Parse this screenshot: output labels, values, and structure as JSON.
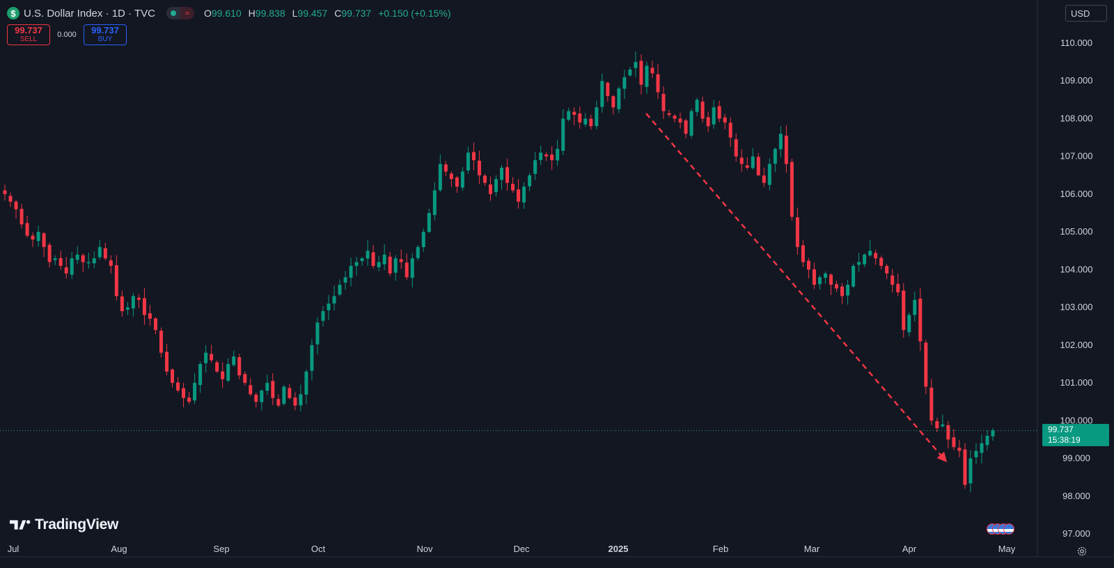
{
  "header": {
    "symbol_logo": "$",
    "title": "U.S. Dollar Index · 1D · TVC",
    "ohlc": [
      {
        "k": "O",
        "v": "99.610"
      },
      {
        "k": "H",
        "v": "99.838"
      },
      {
        "k": "L",
        "v": "99.457"
      },
      {
        "k": "C",
        "v": "99.737"
      },
      {
        "k": "",
        "v": "+0.150 (+0.15%)"
      }
    ]
  },
  "trade": {
    "sell_price": "99.737",
    "sell_label": "SELL",
    "spread": "0.000",
    "buy_price": "99.737",
    "buy_label": "BUY"
  },
  "currency": "USD",
  "last_price": {
    "value": "99.737",
    "countdown": "15:38:19"
  },
  "brand": "TradingView",
  "colors": {
    "up": "#089981",
    "down": "#f23645",
    "bg": "#131722",
    "arrow": "#f23645",
    "text": "#d1d4dc"
  },
  "chart_data": {
    "type": "candlestick",
    "y_ticks": [
      "110.000",
      "109.000",
      "108.000",
      "107.000",
      "106.000",
      "105.000",
      "104.000",
      "103.000",
      "102.000",
      "101.000",
      "100.000",
      "99.000",
      "98.000",
      "97.000"
    ],
    "ylim": [
      96.8,
      110.5
    ],
    "x_ticks": [
      "Jul",
      "Aug",
      "Sep",
      "Oct",
      "Nov",
      "Dec",
      "2025",
      "Feb",
      "Mar",
      "Apr",
      "May"
    ],
    "last_price": 99.737,
    "annotation": {
      "type": "dashed-arrow",
      "from": {
        "date": "2025-01-10",
        "price": 108.2
      },
      "to": {
        "date": "2025-04-14",
        "price": 98.9
      }
    },
    "closes": [
      106.0,
      105.8,
      105.6,
      105.2,
      104.9,
      104.8,
      105.0,
      104.6,
      104.2,
      104.3,
      104.1,
      103.9,
      104.3,
      104.4,
      104.2,
      104.2,
      104.3,
      104.6,
      104.3,
      104.1,
      103.3,
      102.9,
      103.0,
      103.3,
      103.2,
      102.8,
      102.7,
      102.4,
      101.8,
      101.3,
      101.0,
      100.8,
      100.6,
      100.5,
      101.0,
      101.5,
      101.8,
      101.6,
      101.3,
      101.1,
      101.5,
      101.7,
      101.2,
      101.0,
      100.7,
      100.5,
      100.8,
      101.0,
      100.6,
      100.4,
      100.9,
      100.6,
      100.4,
      100.7,
      101.3,
      102.0,
      102.6,
      102.9,
      103.1,
      103.3,
      103.6,
      103.8,
      104.1,
      104.2,
      104.3,
      104.5,
      104.1,
      104.2,
      104.4,
      103.9,
      104.3,
      104.2,
      103.8,
      104.3,
      104.6,
      105.0,
      105.5,
      106.1,
      106.8,
      106.6,
      106.4,
      106.2,
      106.6,
      107.1,
      106.9,
      106.5,
      106.3,
      106.0,
      106.4,
      106.7,
      106.3,
      106.1,
      105.8,
      106.2,
      106.5,
      106.9,
      107.1,
      107.0,
      106.9,
      107.2,
      108.0,
      108.2,
      108.1,
      107.9,
      108.0,
      107.8,
      108.3,
      109.0,
      108.6,
      108.3,
      108.8,
      109.1,
      109.3,
      109.5,
      108.9,
      109.4,
      109.2,
      108.7,
      108.2,
      108.1,
      108.0,
      107.9,
      107.6,
      108.2,
      108.5,
      108.0,
      107.8,
      108.3,
      108.0,
      107.9,
      107.5,
      107.0,
      106.8,
      106.7,
      107.0,
      106.5,
      106.3,
      106.8,
      107.2,
      107.6,
      106.8,
      105.4,
      104.6,
      104.2,
      104.0,
      103.6,
      103.8,
      103.9,
      103.6,
      103.5,
      103.3,
      103.6,
      104.1,
      104.2,
      104.4,
      104.5,
      104.3,
      104.1,
      103.9,
      103.6,
      103.4,
      102.4,
      102.8,
      103.2,
      102.1,
      100.9,
      100.0,
      99.8,
      99.9,
      99.5,
      99.3,
      99.2,
      98.3,
      99.0,
      99.2,
      99.4,
      99.6,
      99.74
    ]
  }
}
